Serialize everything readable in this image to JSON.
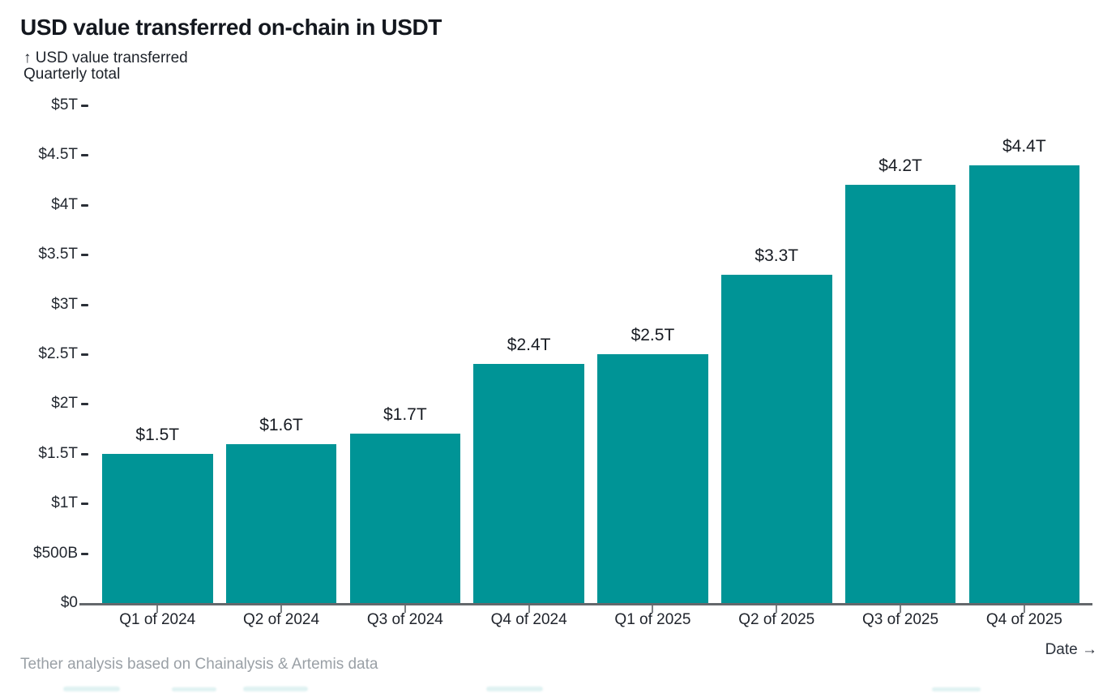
{
  "header": {
    "title": "USD value transferred on-chain in USDT",
    "subtitle_line1": "↑ USD value transferred",
    "subtitle_line2": "Quarterly total"
  },
  "footer": {
    "source": "Tether analysis based on Chainalysis & Artemis data",
    "x_axis_label": "Date →"
  },
  "colors": {
    "bar": "#009496",
    "text": "#14181f",
    "axis_line": "#64686c",
    "footer_text": "#9aa0a6"
  },
  "chart_data": {
    "type": "bar",
    "title": "USD value transferred on-chain in USDT",
    "subtitle": "↑ USD value transferred — Quarterly total",
    "categories": [
      "Q1 of 2024",
      "Q2 of 2024",
      "Q3 of 2024",
      "Q4 of 2024",
      "Q1 of 2025",
      "Q2 of 2025",
      "Q3 of 2025",
      "Q4 of 2025"
    ],
    "values": [
      1.5,
      1.6,
      1.7,
      2.4,
      2.5,
      3.3,
      4.2,
      4.4
    ],
    "value_labels": [
      "$1.5T",
      "$1.6T",
      "$1.7T",
      "$2.4T",
      "$2.5T",
      "$3.3T",
      "$4.2T",
      "$4.4T"
    ],
    "unit": "USD trillions",
    "xlabel": "Date →",
    "ylabel": "USD value transferred, Quarterly total",
    "ylim": [
      0,
      5
    ],
    "y_ticks": [
      {
        "label": "$0",
        "value": 0
      },
      {
        "label": "$500B",
        "value": 0.5
      },
      {
        "label": "$1T",
        "value": 1
      },
      {
        "label": "$1.5T",
        "value": 1.5
      },
      {
        "label": "$2T",
        "value": 2
      },
      {
        "label": "$2.5T",
        "value": 2.5
      },
      {
        "label": "$3T",
        "value": 3
      },
      {
        "label": "$3.5T",
        "value": 3.5
      },
      {
        "label": "$4T",
        "value": 4
      },
      {
        "label": "$4.5T",
        "value": 4.5
      },
      {
        "label": "$5T",
        "value": 5
      }
    ],
    "grid": false,
    "legend": "none",
    "bar_color": "#009496",
    "source": "Tether analysis based on Chainalysis & Artemis data"
  }
}
